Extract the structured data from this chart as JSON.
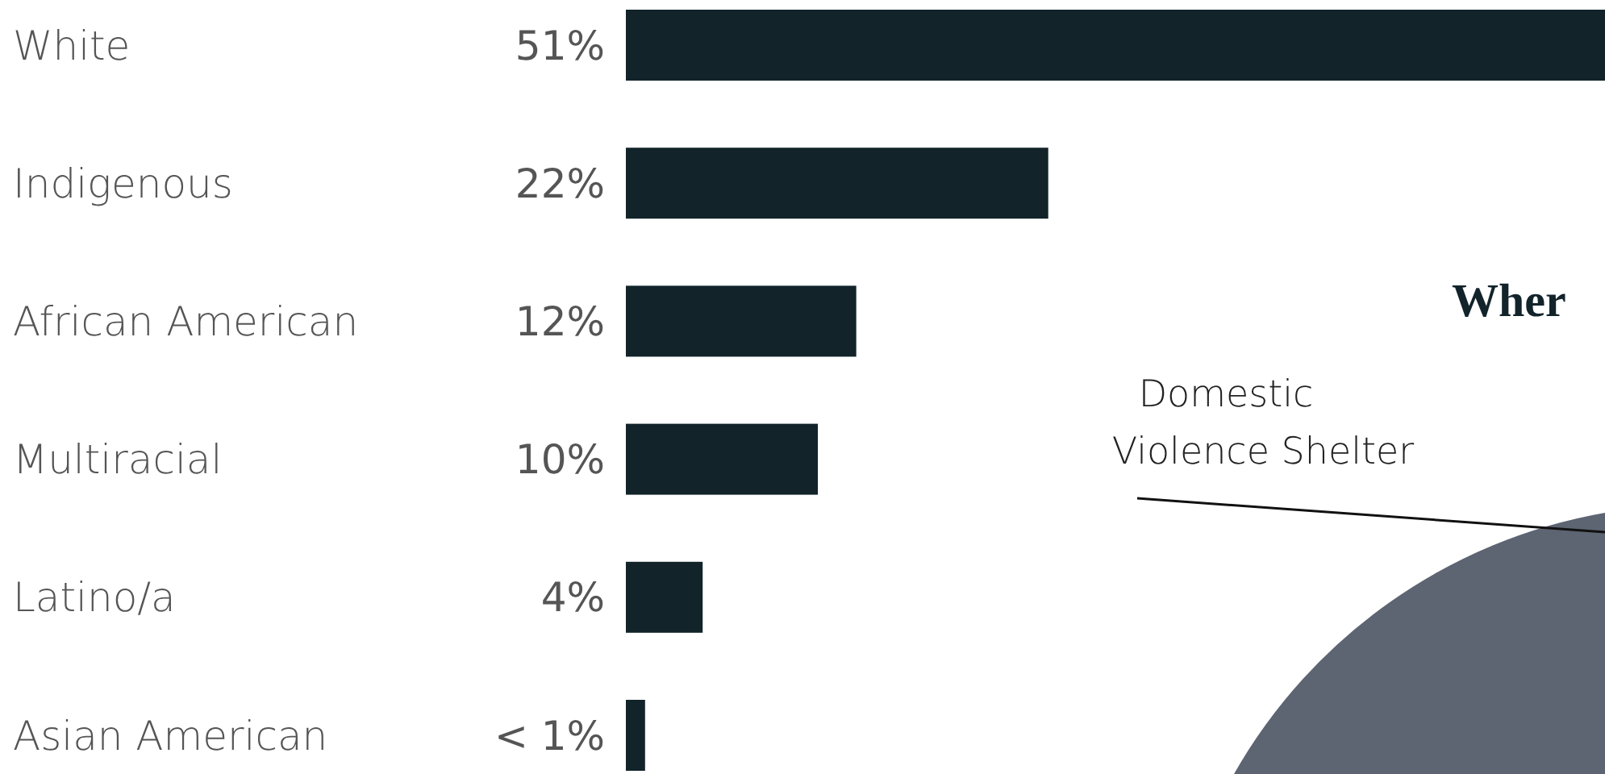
{
  "chart_data": [
    {
      "type": "bar",
      "orientation": "horizontal",
      "categories": [
        "White",
        "Indigenous",
        "African American",
        "Multiracial",
        "Latino/a",
        "Asian American"
      ],
      "values": [
        51,
        22,
        12,
        10,
        4,
        1
      ],
      "value_labels": [
        "51%",
        "22%",
        "12%",
        "10%",
        "4%",
        "< 1%"
      ],
      "color": "#12232a"
    },
    {
      "type": "other",
      "title": "Wher",
      "annotations": [
        "Domestic Violence Shelter"
      ]
    }
  ]
}
